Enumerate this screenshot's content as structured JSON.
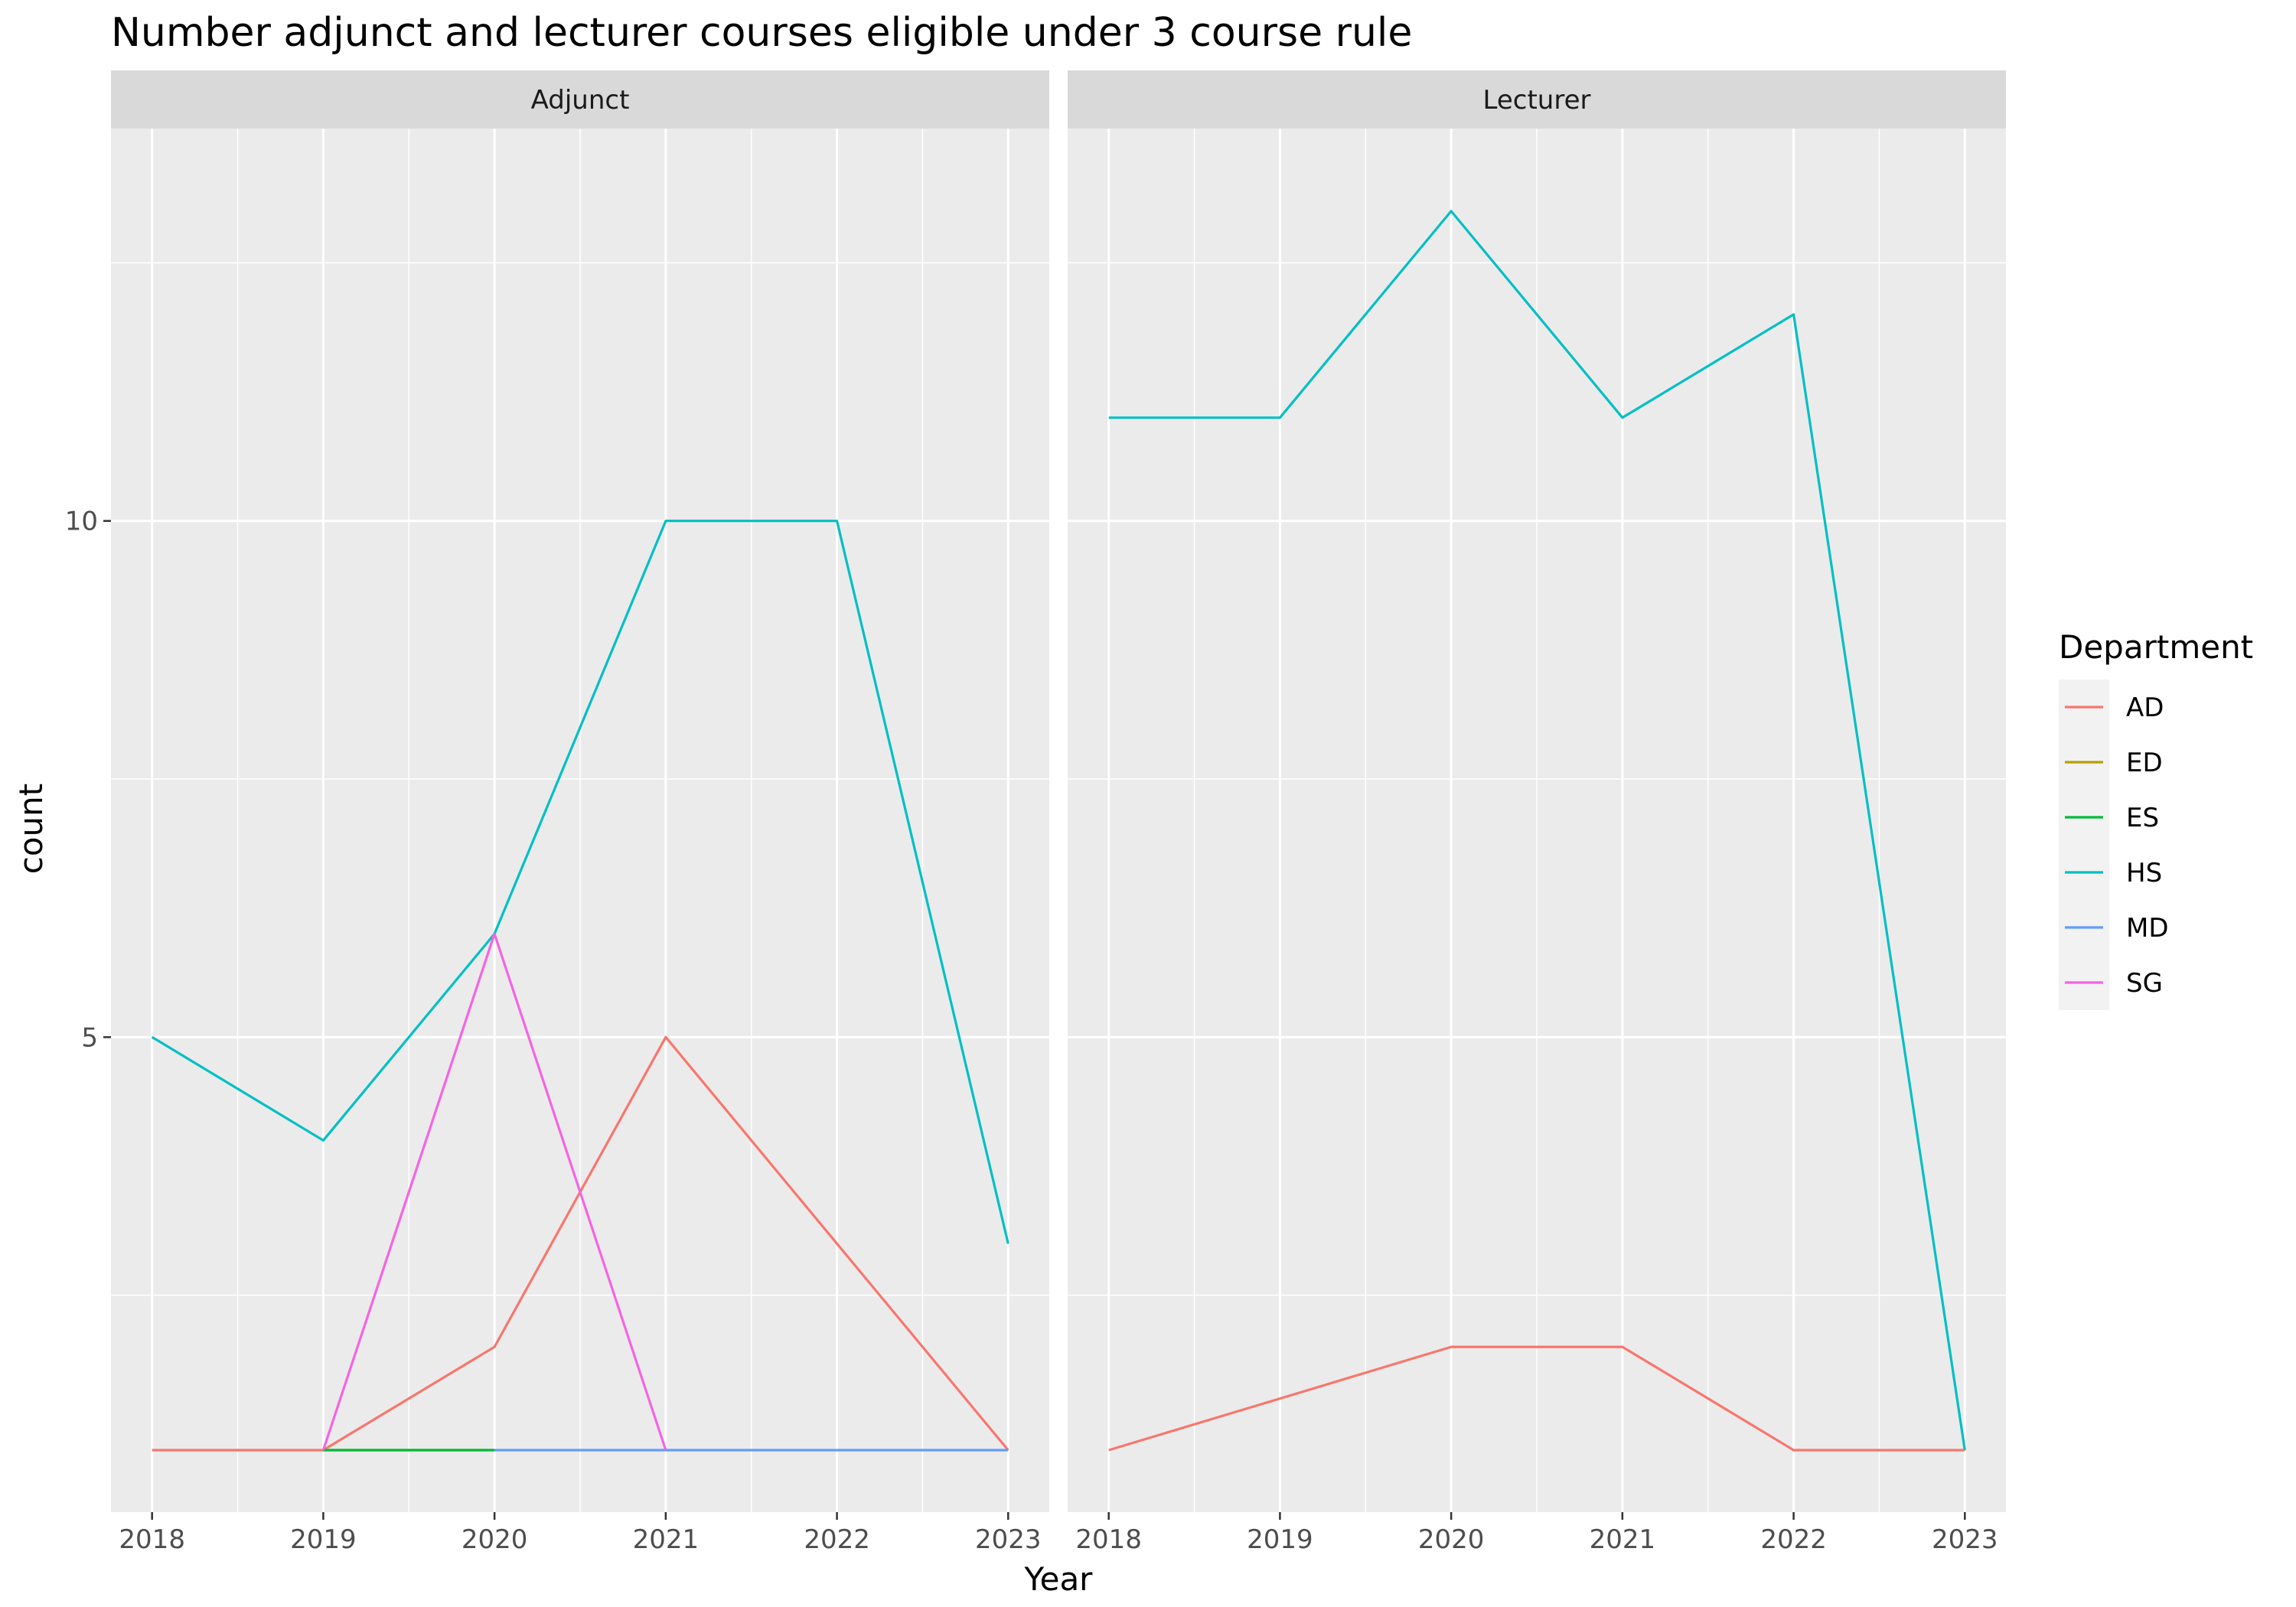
{
  "chart_data": {
    "type": "line",
    "title": "Number adjunct and lecturer courses eligible under 3 course rule",
    "xlabel": "Year",
    "ylabel": "count",
    "x": [
      2018,
      2019,
      2020,
      2021,
      2022,
      2023
    ],
    "ylim": [
      0.4,
      13.8
    ],
    "y_ticks": [
      5,
      10
    ],
    "y_minor_ticks": [
      2.5,
      7.5,
      12.5
    ],
    "x_minor_ticks": [
      2018.5,
      2019.5,
      2020.5,
      2021.5,
      2022.5
    ],
    "grid": true,
    "legend": {
      "title": "Department",
      "position": "right",
      "entries": [
        {
          "name": "AD",
          "color": "#F8766D"
        },
        {
          "name": "ED",
          "color": "#B79F00"
        },
        {
          "name": "ES",
          "color": "#00BA38"
        },
        {
          "name": "HS",
          "color": "#00BFC4"
        },
        {
          "name": "MD",
          "color": "#619CFF"
        },
        {
          "name": "SG",
          "color": "#F564E3"
        }
      ]
    },
    "facets": [
      {
        "label": "Adjunct",
        "series": [
          {
            "name": "AD",
            "color": "#F8766D",
            "x": [
              2018,
              2019,
              2020,
              2021,
              2022,
              2023
            ],
            "y": [
              1,
              1,
              2,
              5,
              3,
              1
            ]
          },
          {
            "name": "ED",
            "color": "#B79F00",
            "x": [
              2019,
              2020
            ],
            "y": [
              1,
              1
            ]
          },
          {
            "name": "ES",
            "color": "#00BA38",
            "x": [
              2019,
              2020
            ],
            "y": [
              1,
              1
            ]
          },
          {
            "name": "HS",
            "color": "#00BFC4",
            "x": [
              2018,
              2019,
              2020,
              2021,
              2022,
              2023
            ],
            "y": [
              5,
              4,
              6,
              10,
              10,
              3
            ]
          },
          {
            "name": "MD",
            "color": "#619CFF",
            "x": [
              2020,
              2021,
              2022,
              2023
            ],
            "y": [
              1,
              1,
              1,
              1
            ]
          },
          {
            "name": "SG",
            "color": "#F564E3",
            "x": [
              2019,
              2020,
              2021
            ],
            "y": [
              1,
              6,
              1
            ]
          }
        ]
      },
      {
        "label": "Lecturer",
        "series": [
          {
            "name": "AD",
            "color": "#F8766D",
            "x": [
              2018,
              2019,
              2020,
              2021,
              2022,
              2023
            ],
            "y": [
              1,
              1.5,
              2,
              2,
              1,
              1
            ]
          },
          {
            "name": "HS",
            "color": "#00BFC4",
            "x": [
              2018,
              2019,
              2020,
              2021,
              2022,
              2023
            ],
            "y": [
              11,
              11,
              13,
              11,
              12,
              1
            ]
          }
        ]
      }
    ]
  }
}
